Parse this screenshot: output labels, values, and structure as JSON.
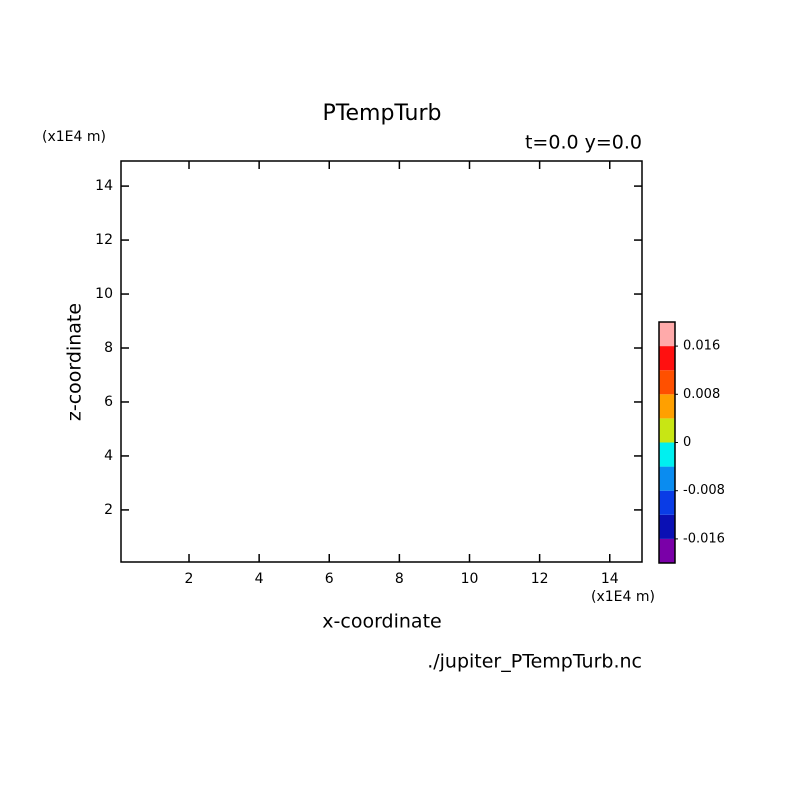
{
  "chart_data": {
    "type": "contour",
    "title": "PTempTurb",
    "annotation": "t=0.0 y=0.0",
    "x_label": "x-coordinate",
    "y_label": "z-coordinate",
    "x_unit": "(x1E4 m)",
    "y_unit": "(x1E4 m)",
    "source": "./jupiter_PTempTurb.nc",
    "xlim": [
      0.06,
      14.92
    ],
    "ylim": [
      0.07,
      14.93
    ],
    "xticks": [
      2,
      4,
      6,
      8,
      10,
      12,
      14
    ],
    "yticks": [
      2,
      4,
      6,
      8,
      10,
      12,
      14
    ],
    "colorbar": {
      "clim": [
        -0.02,
        0.02
      ],
      "colors": [
        "#7a00a8",
        "#0a10b4",
        "#0a3ce6",
        "#0a8cf0",
        "#00f0f0",
        "#c8e614",
        "#ffa000",
        "#ff5000",
        "#ff1010",
        "#ffaaaa"
      ],
      "ticks": [
        -0.016,
        -0.008,
        0,
        0.008,
        0.016
      ]
    }
  }
}
